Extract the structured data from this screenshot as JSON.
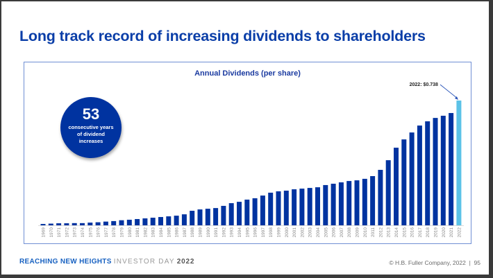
{
  "slide": {
    "title": "Long track record of increasing dividends to shareholders",
    "badge": {
      "number": "53",
      "text_lines": [
        "consecutive years",
        "of dividend",
        "increases"
      ]
    },
    "footer": {
      "brand": "REACHING NEW HEIGHTS",
      "event": "INVESTOR DAY",
      "year": "2022",
      "copyright": "© H.B. Fuller Company, 2022",
      "separator": "|",
      "page_number": "95"
    }
  },
  "colors": {
    "title": "#0a3ea8",
    "bar": "#0033a0",
    "highlight_bar": "#5bc2e7",
    "badge": "#0033a0"
  },
  "chart_data": {
    "type": "bar",
    "title": "Annual Dividends (per share)",
    "xlabel": "",
    "ylabel": "",
    "ylim": [
      0,
      0.738
    ],
    "grid": false,
    "legend": "none",
    "annotation": {
      "text": "2022: $0.738",
      "target": "2022"
    },
    "highlight_category": "2022",
    "categories": [
      "1969",
      "1970",
      "1971",
      "1972",
      "1973",
      "1974",
      "1975",
      "1976",
      "1977",
      "1978",
      "1979",
      "1980",
      "1981",
      "1982",
      "1983",
      "1984",
      "1985",
      "1986",
      "1987",
      "1988",
      "1989",
      "1990",
      "1991",
      "1992",
      "1993",
      "1994",
      "1995",
      "1996",
      "1997",
      "1998",
      "1999",
      "2000",
      "2001",
      "2002",
      "2003",
      "2004",
      "2005",
      "2006",
      "2007",
      "2008",
      "2009",
      "2010",
      "2011",
      "2012",
      "2013",
      "2014",
      "2015",
      "2016",
      "2017",
      "2018",
      "2019",
      "2020",
      "2021",
      "2022"
    ],
    "values": [
      0.008,
      0.01,
      0.012,
      0.012,
      0.013,
      0.013,
      0.016,
      0.018,
      0.022,
      0.025,
      0.03,
      0.033,
      0.037,
      0.041,
      0.045,
      0.049,
      0.053,
      0.057,
      0.065,
      0.086,
      0.094,
      0.098,
      0.102,
      0.115,
      0.131,
      0.139,
      0.152,
      0.16,
      0.176,
      0.193,
      0.201,
      0.205,
      0.213,
      0.217,
      0.221,
      0.225,
      0.238,
      0.246,
      0.254,
      0.262,
      0.266,
      0.275,
      0.291,
      0.328,
      0.385,
      0.459,
      0.508,
      0.549,
      0.59,
      0.615,
      0.635,
      0.648,
      0.664,
      0.738
    ]
  }
}
